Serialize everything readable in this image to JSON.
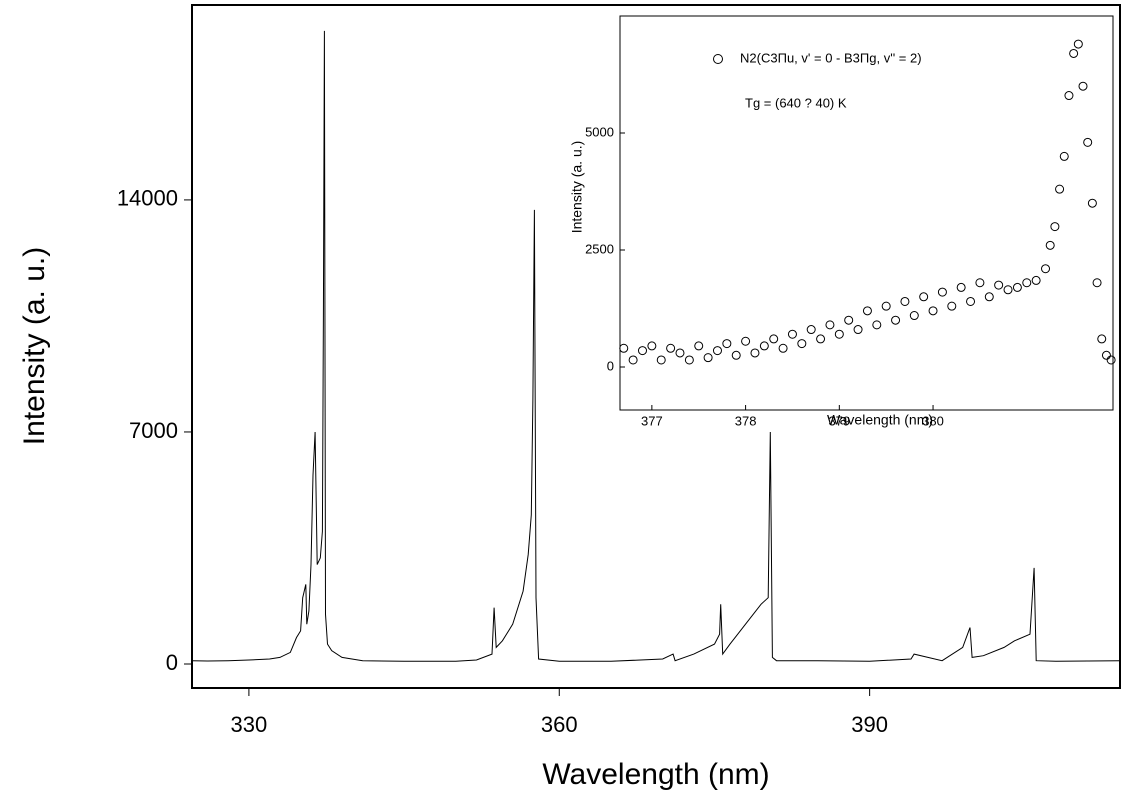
{
  "chart_data": [
    {
      "type": "line",
      "x_label": "Wavelength (nm)",
      "y_label": "Intensity (a. u.)",
      "color": "#000000",
      "x": [
        324.5,
        326,
        328,
        330,
        332,
        333,
        334,
        334.6,
        335,
        335.2,
        335.5,
        335.6,
        335.8,
        336.0,
        336.2,
        336.4,
        336.6,
        336.9,
        337.1,
        337.2,
        337.3,
        337.4,
        337.6,
        338,
        339,
        341,
        345,
        350,
        352,
        353.5,
        353.7,
        353.9,
        354.5,
        355.5,
        356.5,
        357.0,
        357.3,
        357.45,
        357.55,
        357.6,
        357.75,
        358,
        360,
        365,
        370,
        371,
        371.2,
        373,
        375,
        375.5,
        375.6,
        375.8,
        376.5,
        378,
        379.5,
        380.2,
        380.4,
        380.6,
        381,
        385,
        390,
        394,
        394.3,
        397,
        399,
        399.7,
        399.9,
        401,
        403,
        404,
        405.5,
        405.9,
        406.1,
        408,
        414.2
      ],
      "values": [
        100,
        90,
        100,
        120,
        150,
        200,
        350,
        800,
        1000,
        2000,
        2400,
        1200,
        1600,
        3000,
        5700,
        7000,
        3000,
        3200,
        4000,
        10500,
        19100,
        1500,
        600,
        400,
        200,
        100,
        80,
        80,
        120,
        300,
        1700,
        500,
        700,
        1200,
        2200,
        3300,
        4500,
        8000,
        11800,
        13700,
        2000,
        150,
        80,
        80,
        150,
        300,
        100,
        300,
        600,
        900,
        1800,
        300,
        600,
        1200,
        1800,
        2000,
        7000,
        200,
        100,
        100,
        80,
        150,
        300,
        100,
        500,
        1100,
        200,
        250,
        500,
        700,
        900,
        2900,
        100,
        80,
        100
      ],
      "xlim": [
        324.5,
        414.2
      ],
      "ylim": [
        -724,
        19880
      ],
      "xticks": [
        330,
        360,
        390
      ],
      "yticks": [
        0,
        7000,
        14000
      ]
    },
    {
      "type": "scatter",
      "x_label": "Wavelength (nm)",
      "y_label": "Intensity (a. u.)",
      "annotations": [
        "Tg = (640 ? 40) K"
      ],
      "x": [
        376.7,
        376.8,
        376.9,
        377.0,
        377.1,
        377.2,
        377.3,
        377.4,
        377.5,
        377.6,
        377.7,
        377.8,
        377.9,
        378.0,
        378.1,
        378.2,
        378.3,
        378.4,
        378.5,
        378.6,
        378.7,
        378.8,
        378.9,
        379.0,
        379.1,
        379.2,
        379.3,
        379.4,
        379.5,
        379.6,
        379.7,
        379.8,
        379.9,
        380.0,
        380.1,
        380.2,
        380.3,
        380.4,
        380.5,
        380.6,
        380.7,
        380.8,
        380.9,
        381.0,
        381.1,
        381.2,
        381.25,
        381.3,
        381.35,
        381.4,
        381.45,
        381.5,
        381.55,
        381.6,
        381.65,
        381.7,
        381.75,
        381.8,
        381.85,
        381.9
      ],
      "series": [
        {
          "name": "N2(C3Πu, v' = 0 - B3Πg, v'' = 2)",
          "color": "#000000",
          "values": [
            400,
            150,
            350,
            450,
            150,
            400,
            300,
            150,
            450,
            200,
            350,
            500,
            250,
            550,
            300,
            450,
            600,
            400,
            700,
            500,
            800,
            600,
            900,
            700,
            1000,
            800,
            1200,
            900,
            1300,
            1000,
            1400,
            1100,
            1500,
            1200,
            1600,
            1300,
            1700,
            1400,
            1800,
            1500,
            1750,
            1650,
            1700,
            1800,
            1850,
            2100,
            2600,
            3000,
            3800,
            4500,
            5800,
            6700,
            6900,
            6000,
            4800,
            3500,
            1800,
            600,
            250,
            150
          ]
        }
      ],
      "xlim": [
        376.66,
        381.92
      ],
      "ylim": [
        -919,
        7500
      ],
      "xticks": [
        377,
        378,
        379,
        380
      ],
      "yticks": [
        0,
        2500,
        5000
      ]
    }
  ]
}
